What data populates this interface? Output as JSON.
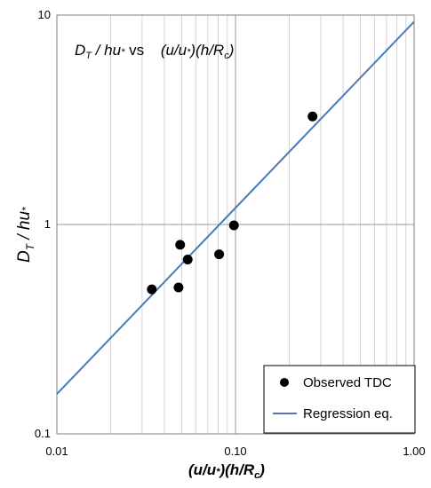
{
  "chart_data": {
    "type": "scatter",
    "x_scale": "log",
    "y_scale": "log",
    "xlim": [
      0.01,
      1.0
    ],
    "ylim": [
      0.1,
      10
    ],
    "grid": true,
    "legend_position": "bottom-right",
    "x_tick_labels": [
      "0.01",
      "0.10",
      "1.00"
    ],
    "y_tick_labels": [
      "0.1",
      "1",
      "10"
    ],
    "title": {
      "lhs": "D",
      "lhs_sub": "T",
      "lhs_rest": " / hu",
      "lhs_star": "*",
      "vs": " vs ",
      "rhs_a": "(u/u",
      "rhs_star": "*",
      "rhs_b": ")(h/R",
      "rhs_sub": "c",
      "rhs_c": ")"
    },
    "ylabel": {
      "a": "D",
      "sub": "T",
      "b": " / hu",
      "star": "*"
    },
    "xlabel": {
      "a": "(u/u",
      "star": "*",
      "b": ")(h/R",
      "sub": "c",
      "c": ")"
    },
    "series": [
      {
        "name": "Observed TDC",
        "type": "scatter",
        "color": "#000000",
        "points": [
          {
            "x": 0.034,
            "y": 0.49
          },
          {
            "x": 0.048,
            "y": 0.5
          },
          {
            "x": 0.049,
            "y": 0.8
          },
          {
            "x": 0.054,
            "y": 0.68
          },
          {
            "x": 0.081,
            "y": 0.72
          },
          {
            "x": 0.098,
            "y": 0.99
          },
          {
            "x": 0.27,
            "y": 3.28
          }
        ]
      },
      {
        "name": "Regression eq.",
        "type": "line",
        "color": "#4a7ab8",
        "points": [
          {
            "x": 0.01,
            "y": 0.155
          },
          {
            "x": 1.0,
            "y": 9.3
          }
        ]
      }
    ]
  }
}
